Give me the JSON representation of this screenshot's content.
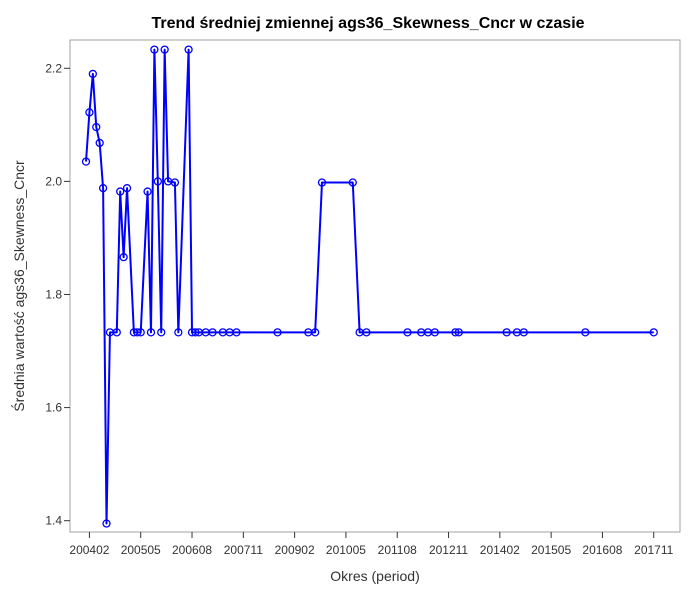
{
  "chart_data": {
    "type": "line",
    "title": "Trend średniej zmiennej ags36_Skewness_Cncr w czasie",
    "xlabel": "Okres (period)",
    "ylabel": "Średnia wartość ags36_Skewness_Cncr",
    "x_axis_type": "year-month period (YYYYMM)",
    "xlim": [
      "2004-01",
      "2018-02"
    ],
    "ylim": [
      1.38,
      2.25
    ],
    "x_ticks": [
      "200402",
      "200505",
      "200608",
      "200711",
      "200902",
      "201005",
      "201108",
      "201211",
      "201402",
      "201505",
      "201608",
      "201711"
    ],
    "y_ticks": [
      "1.4",
      "1.6",
      "1.8",
      "2.0",
      "2.2"
    ],
    "line_color": "#0000ff",
    "marker": "open circle",
    "grid": false,
    "series": [
      {
        "x": [
          "2004-01",
          "2004-02",
          "2004-03",
          "2004-04",
          "2004-05",
          "2004-06",
          "2004-07",
          "2004-08",
          "2004-10",
          "2004-11",
          "2004-12",
          "2005-01",
          "2005-03",
          "2005-04",
          "2005-05",
          "2005-07",
          "2005-08",
          "2005-09",
          "2005-10",
          "2005-11",
          "2005-12",
          "2006-01",
          "2006-03",
          "2006-04",
          "2006-07",
          "2006-08",
          "2006-09",
          "2006-10",
          "2006-12",
          "2007-02",
          "2007-05",
          "2007-07",
          "2007-09",
          "2008-09",
          "2009-06",
          "2009-08",
          "2009-10",
          "2010-07",
          "2010-09",
          "2010-11",
          "2011-11",
          "2012-03",
          "2012-05",
          "2012-07",
          "2013-01",
          "2013-02",
          "2014-04",
          "2014-07",
          "2014-09",
          "2016-03",
          "2017-11"
        ],
        "values": [
          2.035,
          2.122,
          2.19,
          2.096,
          2.068,
          1.988,
          1.395,
          1.733,
          1.733,
          1.982,
          1.866,
          1.988,
          1.733,
          1.733,
          1.733,
          1.982,
          1.733,
          2.233,
          2.0,
          1.733,
          2.233,
          2.0,
          1.998,
          1.733,
          2.233,
          1.733,
          1.733,
          1.733,
          1.733,
          1.733,
          1.733,
          1.733,
          1.733,
          1.733,
          1.733,
          1.733,
          1.998,
          1.998,
          1.733,
          1.733,
          1.733,
          1.733,
          1.733,
          1.733,
          1.733,
          1.733,
          1.733,
          1.733,
          1.733,
          1.733,
          1.733
        ]
      }
    ]
  }
}
